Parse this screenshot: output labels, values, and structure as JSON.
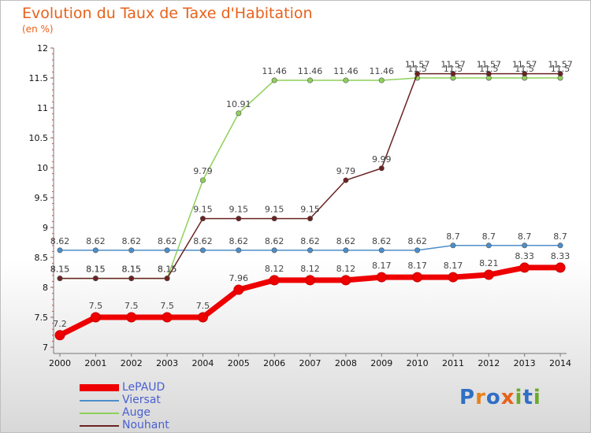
{
  "title": "Evolution du Taux de Taxe d'Habitation",
  "unit": "(en %)",
  "logo": {
    "text": "Proxiti",
    "letters": [
      {
        "ch": "P",
        "color": "#2f6fc4"
      },
      {
        "ch": "r",
        "color": "#e8811a"
      },
      {
        "ch": "o",
        "color": "#2f6fc4"
      },
      {
        "ch": "x",
        "color": "#e8611a"
      },
      {
        "ch": "i",
        "color": "#6aaa2a"
      },
      {
        "ch": "t",
        "color": "#2f6fc4"
      },
      {
        "ch": "i",
        "color": "#6aaa2a"
      }
    ]
  },
  "chart_data": {
    "type": "line",
    "x": [
      "2000",
      "2001",
      "2002",
      "2003",
      "2004",
      "2005",
      "2006",
      "2007",
      "2008",
      "2009",
      "2010",
      "2011",
      "2012",
      "2013",
      "2014"
    ],
    "ylim": [
      7,
      12
    ],
    "yticks": [
      "7",
      "7.5",
      "8",
      "8.5",
      "9",
      "9.5",
      "10",
      "10.5",
      "11",
      "11.5",
      "12"
    ],
    "grid": false,
    "legend_position": "bottom-left",
    "series": [
      {
        "name": "Viersat",
        "color": "#4d8ec9",
        "values": [
          8.62,
          8.62,
          8.62,
          8.62,
          8.62,
          8.62,
          8.62,
          8.62,
          8.62,
          8.62,
          8.62,
          8.7,
          8.7,
          8.7,
          8.7
        ],
        "labels": [
          "8.62",
          "8.62",
          "8.62",
          "8.62",
          "8.62",
          "8.62",
          "8.62",
          "8.62",
          "8.62",
          "8.62",
          "8.62",
          "8.7",
          "8.7",
          "8.7",
          "8.7"
        ]
      },
      {
        "name": "Auge",
        "color": "#8fd05a",
        "values": [
          8.15,
          8.15,
          8.15,
          8.15,
          9.79,
          10.91,
          11.46,
          11.46,
          11.46,
          11.46,
          11.5,
          11.5,
          11.5,
          11.5,
          11.5
        ],
        "labels": [
          "8.15",
          "8.15",
          "8.15",
          "8.15",
          "9.79",
          "10.91",
          "11.46",
          "11.46",
          "11.46",
          "11.46",
          "11.5",
          "11.5",
          "11.5",
          "11.5",
          "11.5"
        ]
      },
      {
        "name": "Nouhant",
        "color": "#6b2222",
        "values": [
          8.15,
          8.15,
          8.15,
          8.15,
          9.15,
          9.15,
          9.15,
          9.15,
          9.79,
          9.99,
          11.57,
          11.57,
          11.57,
          11.57,
          11.57
        ],
        "labels": [
          "8.15",
          "8.15",
          "8.15",
          "8.15",
          "9.15",
          "9.15",
          "9.15",
          "9.15",
          "9.79",
          "9.99",
          "11.57",
          "11.57",
          "11.57",
          "11.57",
          "11.57"
        ]
      },
      {
        "name": "LePAUD",
        "color": "#ee0000",
        "values": [
          7.2,
          7.5,
          7.5,
          7.5,
          7.5,
          7.96,
          8.12,
          8.12,
          8.12,
          8.17,
          8.17,
          8.17,
          8.21,
          8.33,
          8.33
        ],
        "labels": [
          "7.2",
          "7.5",
          "7.5",
          "7.5",
          "7.5",
          "7.96",
          "8.12",
          "8.12",
          "8.12",
          "8.17",
          "8.17",
          "8.17",
          "8.21",
          "8.33",
          "8.33"
        ]
      }
    ],
    "legend": [
      "LePAUD",
      "Viersat",
      "Auge",
      "Nouhant"
    ]
  }
}
